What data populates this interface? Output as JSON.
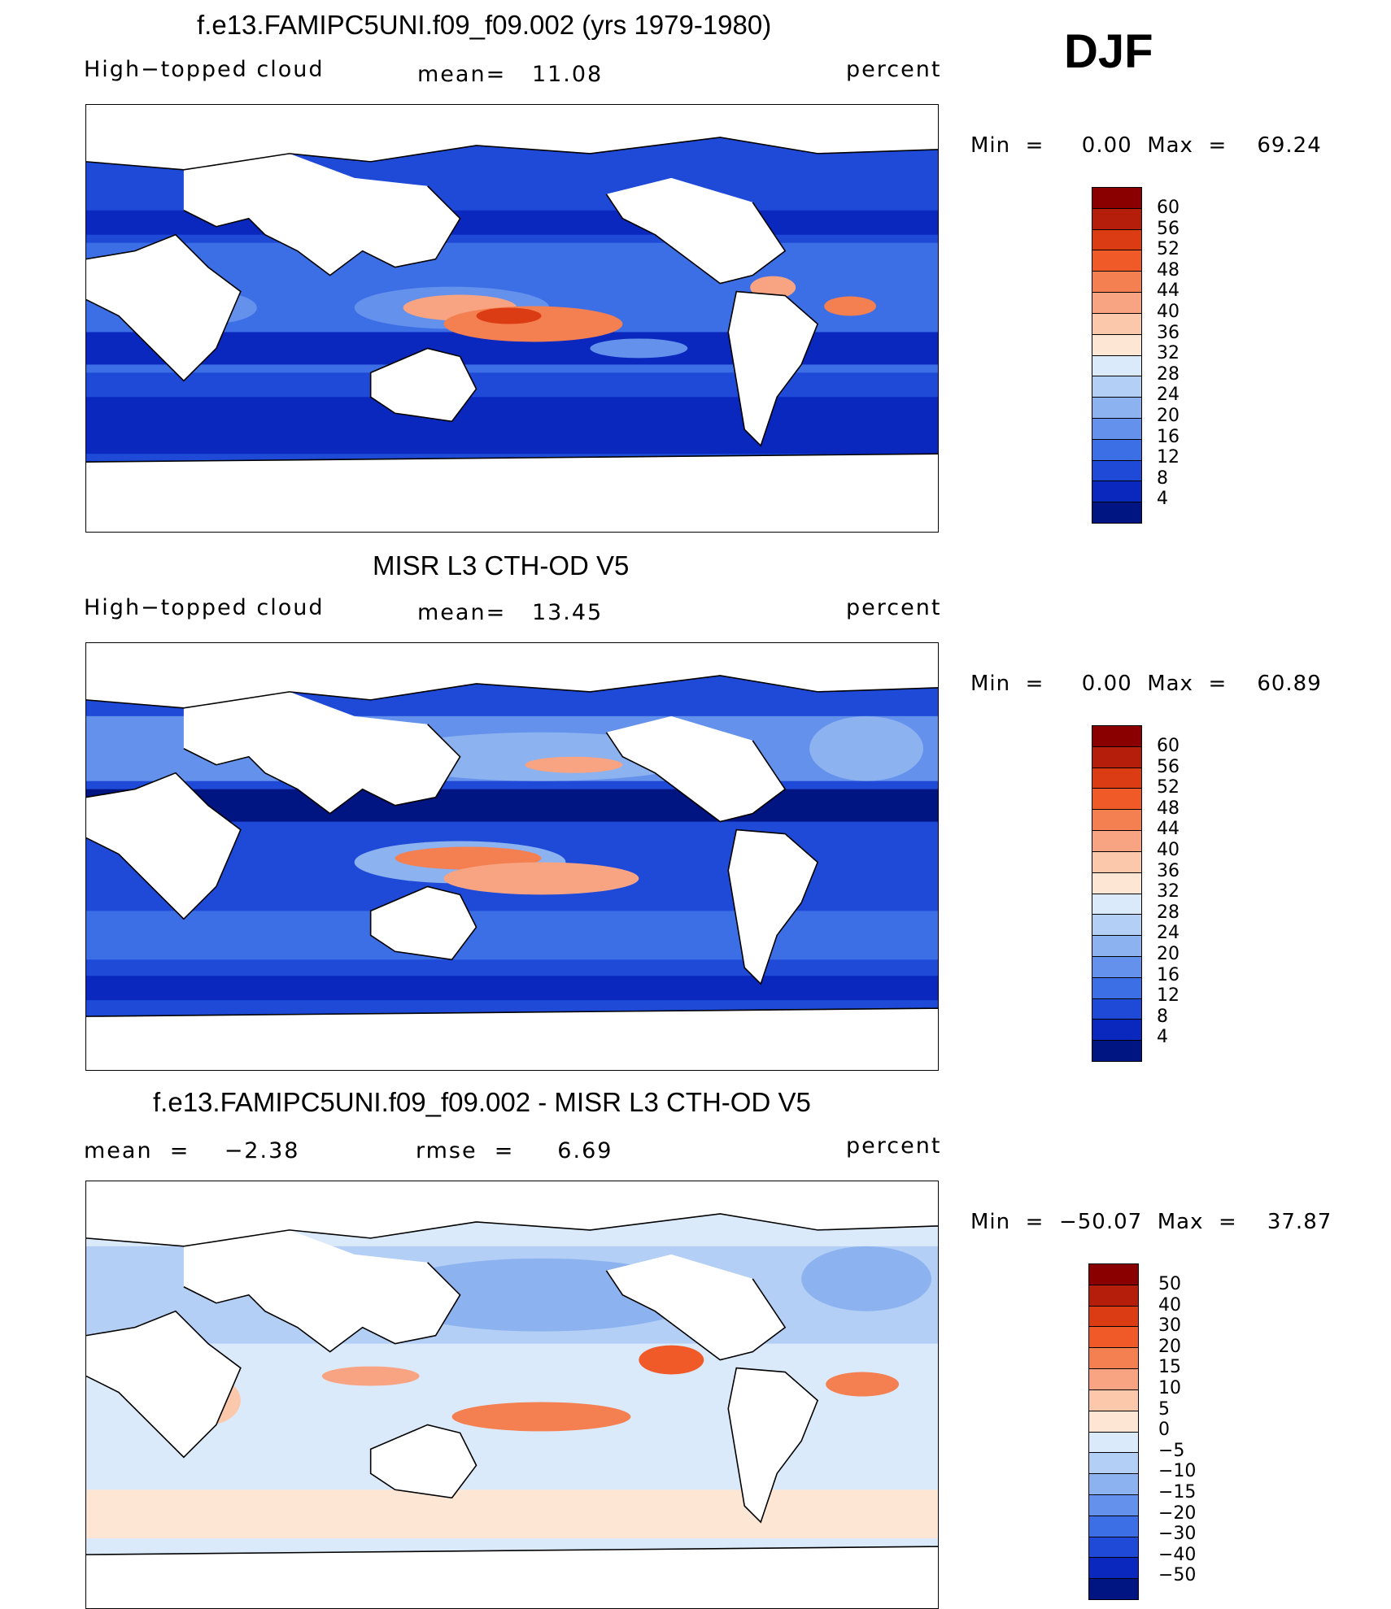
{
  "season": "DJF",
  "panels": [
    {
      "title": "f.e13.FAMIPC5UNI.f09_f09.002 (yrs 1979-1980)",
      "left_label": "High−topped cloud",
      "center_label": "mean=   11.08",
      "units": "percent",
      "minmax": "Min  =     0.00  Max  =    69.24",
      "colorbar_labels": [
        "60",
        "56",
        "52",
        "48",
        "44",
        "40",
        "36",
        "32",
        "28",
        "24",
        "20",
        "16",
        "12",
        "8",
        "4"
      ],
      "colorbar_colors": [
        "#8a0000",
        "#b41e0a",
        "#dc3c14",
        "#f05a28",
        "#f47f50",
        "#f8a482",
        "#fcc8ac",
        "#fde6d4",
        "#dbeafa",
        "#b4cff5",
        "#8cb2ef",
        "#6491eb",
        "#3c6ee6",
        "#1e4ad7",
        "#0a28be",
        "#001482"
      ]
    },
    {
      "title": "MISR L3 CTH-OD V5",
      "left_label": "High−topped cloud",
      "center_label": "mean=   13.45",
      "units": "percent",
      "minmax": "Min  =     0.00  Max  =    60.89",
      "colorbar_labels": [
        "60",
        "56",
        "52",
        "48",
        "44",
        "40",
        "36",
        "32",
        "28",
        "24",
        "20",
        "16",
        "12",
        "8",
        "4"
      ],
      "colorbar_colors": [
        "#8a0000",
        "#b41e0a",
        "#dc3c14",
        "#f05a28",
        "#f47f50",
        "#f8a482",
        "#fcc8ac",
        "#fde6d4",
        "#dbeafa",
        "#b4cff5",
        "#8cb2ef",
        "#6491eb",
        "#3c6ee6",
        "#1e4ad7",
        "#0a28be",
        "#001482"
      ]
    },
    {
      "title": "f.e13.FAMIPC5UNI.f09_f09.002 - MISR L3 CTH-OD V5",
      "left_label": "mean  =    −2.38",
      "center_label": "rmse  =     6.69",
      "units": "percent",
      "minmax": "Min  =  −50.07  Max  =    37.87",
      "colorbar_labels": [
        "50",
        "40",
        "30",
        "20",
        "15",
        "10",
        "5",
        "0",
        "−5",
        "−10",
        "−15",
        "−20",
        "−30",
        "−40",
        "−50"
      ],
      "colorbar_colors": [
        "#8a0000",
        "#b41e0a",
        "#dc3c14",
        "#f05a28",
        "#f47f50",
        "#f8a482",
        "#fcc8ac",
        "#fde6d4",
        "#dbeafa",
        "#b4cff5",
        "#8cb2ef",
        "#6491eb",
        "#3c6ee6",
        "#1e4ad7",
        "#0a28be",
        "#001482"
      ]
    }
  ]
}
